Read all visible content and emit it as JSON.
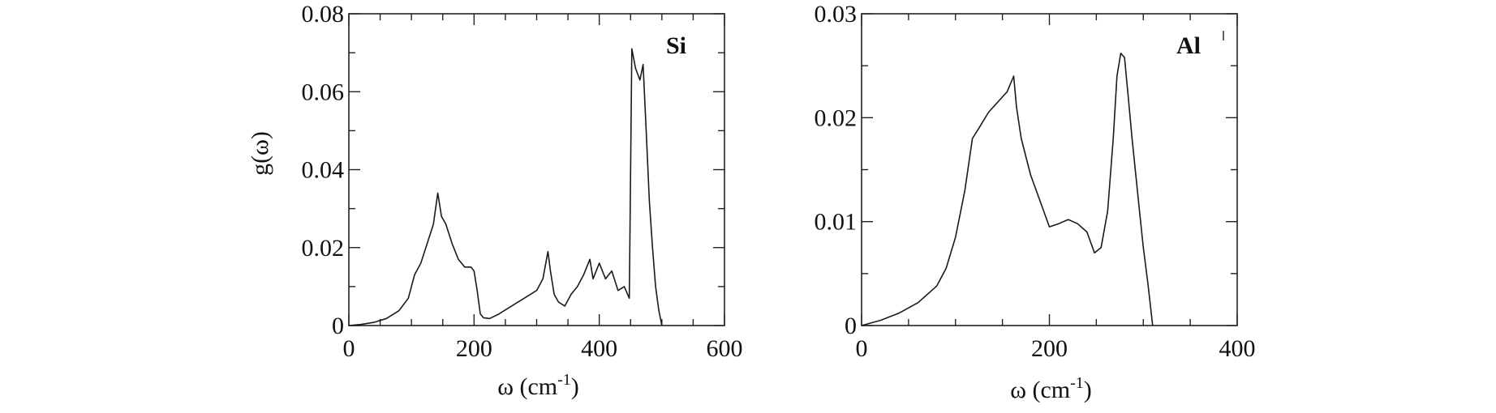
{
  "chart_data": [
    {
      "type": "line",
      "panel_label": "Si",
      "xlabel": "ω (cm",
      "xlabel_sup": "-1",
      "xlabel_end": ")",
      "ylabel": "g(ω)",
      "xlim": [
        0,
        600
      ],
      "ylim": [
        0,
        0.08
      ],
      "x_ticks": [
        0,
        200,
        400,
        600
      ],
      "x_tick_labels": [
        "0",
        "200",
        "400",
        "600"
      ],
      "y_ticks": [
        0,
        0.02,
        0.04,
        0.06,
        0.08
      ],
      "y_tick_labels": [
        "0",
        "0.02",
        "0.04",
        "0.06",
        "0.08"
      ],
      "x_minor_step": 50,
      "y_minor_step": 0.01,
      "series": [
        {
          "x": [
            0,
            20,
            40,
            60,
            80,
            95,
            105,
            115,
            125,
            135,
            142,
            148,
            155,
            165,
            175,
            185,
            195,
            200,
            205,
            210,
            215,
            225,
            240,
            260,
            280,
            300,
            310,
            318,
            322,
            328,
            335,
            345,
            355,
            365,
            375,
            385,
            390,
            400,
            410,
            420,
            430,
            440,
            448,
            452,
            458,
            465,
            470,
            475,
            480,
            485,
            490,
            495,
            500
          ],
          "y": [
            0,
            0.0003,
            0.0008,
            0.0018,
            0.0038,
            0.007,
            0.013,
            0.016,
            0.021,
            0.026,
            0.034,
            0.028,
            0.026,
            0.021,
            0.017,
            0.015,
            0.015,
            0.014,
            0.009,
            0.003,
            0.002,
            0.0018,
            0.003,
            0.005,
            0.007,
            0.009,
            0.012,
            0.019,
            0.014,
            0.008,
            0.006,
            0.005,
            0.008,
            0.01,
            0.013,
            0.017,
            0.012,
            0.016,
            0.012,
            0.014,
            0.009,
            0.01,
            0.007,
            0.071,
            0.066,
            0.063,
            0.067,
            0.05,
            0.032,
            0.02,
            0.01,
            0.004,
            0
          ]
        }
      ]
    },
    {
      "type": "line",
      "panel_label": "Al",
      "xlabel": "ω (cm",
      "xlabel_sup": "-1",
      "xlabel_end": ")",
      "ylabel": "",
      "xlim": [
        0,
        400
      ],
      "ylim": [
        0,
        0.03
      ],
      "x_ticks": [
        0,
        200,
        400
      ],
      "x_tick_labels": [
        "0",
        "200",
        "400"
      ],
      "y_ticks": [
        0,
        0.01,
        0.02,
        0.03
      ],
      "y_tick_labels": [
        "0",
        "0.01",
        "0.02",
        "0.03"
      ],
      "x_minor_step": 50,
      "y_minor_step": 0.005,
      "series": [
        {
          "x": [
            0,
            20,
            40,
            60,
            80,
            90,
            100,
            110,
            118,
            125,
            135,
            145,
            155,
            162,
            165,
            170,
            180,
            190,
            200,
            210,
            220,
            230,
            240,
            248,
            255,
            262,
            268,
            272,
            276,
            280,
            284,
            288,
            292,
            296,
            300,
            305,
            310
          ],
          "y": [
            0,
            0.0005,
            0.0012,
            0.0022,
            0.0038,
            0.0055,
            0.0085,
            0.013,
            0.018,
            0.019,
            0.0205,
            0.0215,
            0.0225,
            0.024,
            0.021,
            0.018,
            0.0145,
            0.012,
            0.0095,
            0.0098,
            0.0102,
            0.0098,
            0.009,
            0.007,
            0.0075,
            0.011,
            0.018,
            0.024,
            0.0262,
            0.0258,
            0.022,
            0.018,
            0.0145,
            0.011,
            0.0075,
            0.004,
            0
          ]
        }
      ]
    }
  ]
}
